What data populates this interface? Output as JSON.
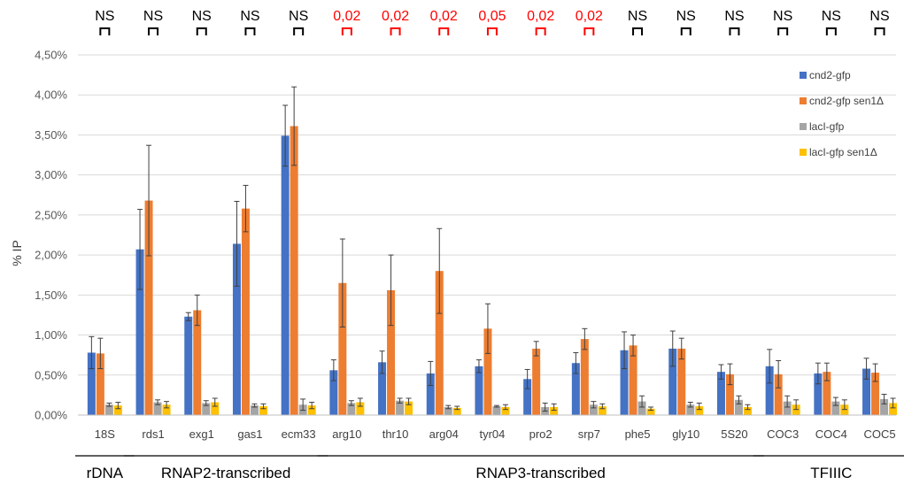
{
  "chart_data": {
    "type": "bar",
    "ylabel": "% IP",
    "ylim": [
      0,
      4.5
    ],
    "yticks": [
      "0,00%",
      "0,50%",
      "1,00%",
      "1,50%",
      "2,00%",
      "2,50%",
      "3,00%",
      "3,50%",
      "4,00%",
      "4,50%"
    ],
    "grid": true,
    "legend_position": "right",
    "categories": [
      "18S",
      "rds1",
      "exg1",
      "gas1",
      "ecm33",
      "arg10",
      "thr10",
      "arg04",
      "tyr04",
      "pro2",
      "srp7",
      "phe5",
      "gly10",
      "5S20",
      "COC3",
      "COC4",
      "COC5"
    ],
    "series": [
      {
        "name": "cnd2-gfp",
        "color": "#4472C4",
        "values": [
          0.78,
          2.07,
          1.23,
          2.14,
          3.49,
          0.56,
          0.66,
          0.52,
          0.61,
          0.45,
          0.65,
          0.81,
          0.83,
          0.54,
          0.61,
          0.52,
          0.58
        ],
        "errors": [
          0.2,
          0.5,
          0.05,
          0.53,
          0.38,
          0.13,
          0.14,
          0.15,
          0.08,
          0.12,
          0.13,
          0.23,
          0.22,
          0.09,
          0.21,
          0.13,
          0.13
        ]
      },
      {
        "name": "cnd2-gfp sen1Δ",
        "color": "#ED7D31",
        "values": [
          0.77,
          2.68,
          1.31,
          2.58,
          3.61,
          1.65,
          1.56,
          1.8,
          1.08,
          0.83,
          0.95,
          0.87,
          0.83,
          0.51,
          0.51,
          0.54,
          0.53
        ],
        "errors": [
          0.19,
          0.69,
          0.19,
          0.29,
          0.49,
          0.55,
          0.44,
          0.53,
          0.31,
          0.09,
          0.13,
          0.13,
          0.13,
          0.13,
          0.17,
          0.11,
          0.11
        ]
      },
      {
        "name": "lacI-gfp",
        "color": "#A5A5A5",
        "values": [
          0.13,
          0.16,
          0.15,
          0.12,
          0.13,
          0.15,
          0.18,
          0.1,
          0.11,
          0.1,
          0.13,
          0.17,
          0.13,
          0.19,
          0.17,
          0.17,
          0.2
        ],
        "errors": [
          0.02,
          0.03,
          0.03,
          0.02,
          0.07,
          0.03,
          0.03,
          0.02,
          0.01,
          0.05,
          0.04,
          0.07,
          0.03,
          0.05,
          0.07,
          0.05,
          0.06
        ]
      },
      {
        "name": "lacI-gfp sen1Δ",
        "color": "#FFC000",
        "values": [
          0.12,
          0.13,
          0.16,
          0.11,
          0.12,
          0.16,
          0.17,
          0.09,
          0.1,
          0.1,
          0.11,
          0.08,
          0.11,
          0.1,
          0.13,
          0.13,
          0.15
        ],
        "errors": [
          0.04,
          0.04,
          0.05,
          0.03,
          0.04,
          0.05,
          0.04,
          0.02,
          0.03,
          0.04,
          0.03,
          0.02,
          0.04,
          0.03,
          0.06,
          0.06,
          0.06
        ]
      }
    ],
    "significance": [
      {
        "label": "NS",
        "color": "#000000"
      },
      {
        "label": "NS",
        "color": "#000000"
      },
      {
        "label": "NS",
        "color": "#000000"
      },
      {
        "label": "NS",
        "color": "#000000"
      },
      {
        "label": "NS",
        "color": "#000000"
      },
      {
        "label": "0,02",
        "color": "#FF0000"
      },
      {
        "label": "0,02",
        "color": "#FF0000"
      },
      {
        "label": "0,02",
        "color": "#FF0000"
      },
      {
        "label": "0,05",
        "color": "#FF0000"
      },
      {
        "label": "0,02",
        "color": "#FF0000"
      },
      {
        "label": "0,02",
        "color": "#FF0000"
      },
      {
        "label": "NS",
        "color": "#000000"
      },
      {
        "label": "NS",
        "color": "#000000"
      },
      {
        "label": "NS",
        "color": "#000000"
      },
      {
        "label": "NS",
        "color": "#000000"
      },
      {
        "label": "NS",
        "color": "#000000"
      },
      {
        "label": "NS",
        "color": "#000000"
      }
    ],
    "groups": [
      {
        "label": "rDNA",
        "from": 0,
        "to": 0
      },
      {
        "label": "RNAP2-transcribed",
        "from": 1,
        "to": 4
      },
      {
        "label": "RNAP3-transcribed",
        "from": 5,
        "to": 13
      },
      {
        "label": "TFIIIC",
        "from": 14,
        "to": 16
      }
    ]
  }
}
